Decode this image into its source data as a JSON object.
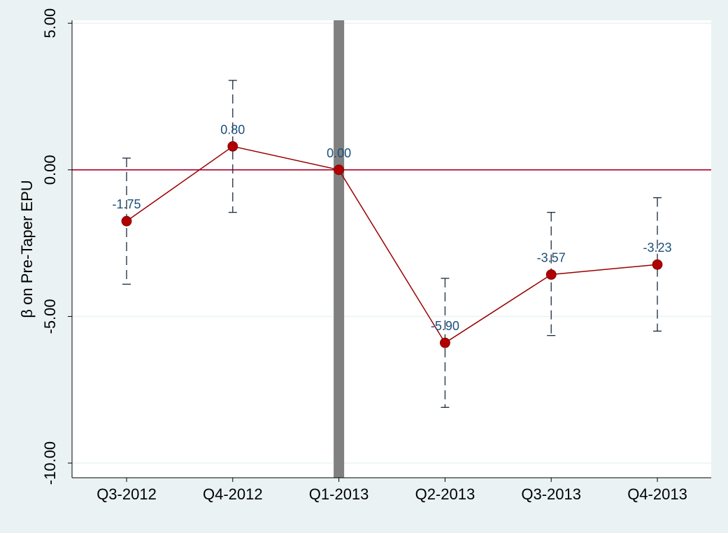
{
  "chart_data": {
    "type": "line",
    "title": "",
    "xlabel": "",
    "ylabel": "β on Pre-Taper EPU",
    "categories": [
      "Q3-2012",
      "Q4-2012",
      "Q1-2013",
      "Q2-2013",
      "Q3-2013",
      "Q4-2013"
    ],
    "series": [
      {
        "values": [
          -1.75,
          0.8,
          0.0,
          -5.9,
          -3.57,
          -3.23
        ],
        "labels": [
          "-1.75",
          "0.80",
          "0.00",
          "-5.90",
          "-3.57",
          "-3.23"
        ],
        "ci_upper": [
          0.4,
          3.05,
          0.0,
          -3.7,
          -1.45,
          -0.95
        ],
        "ci_lower": [
          -3.9,
          -1.45,
          0.0,
          -8.1,
          -5.65,
          -5.5
        ]
      }
    ],
    "yticks": [
      5,
      0,
      -5,
      -10
    ],
    "ytick_labels": [
      "5.00",
      "0.00",
      "-5.00",
      "-10.00"
    ],
    "ylim": [
      -10.5,
      5.1
    ],
    "reference_line_y": 0,
    "event_marker_category": "Q1-2013",
    "grid": true,
    "legend": "none",
    "colors": {
      "background": "#eaf2f3",
      "plot_background": "#ffffff",
      "grid": "#eaf2f3",
      "series": "#990000",
      "marker": "#b00000",
      "reference_line": "#b0002a",
      "event_bar": "#808080",
      "data_label": "#1a4f7a",
      "ci": "#1a2a3a"
    }
  }
}
